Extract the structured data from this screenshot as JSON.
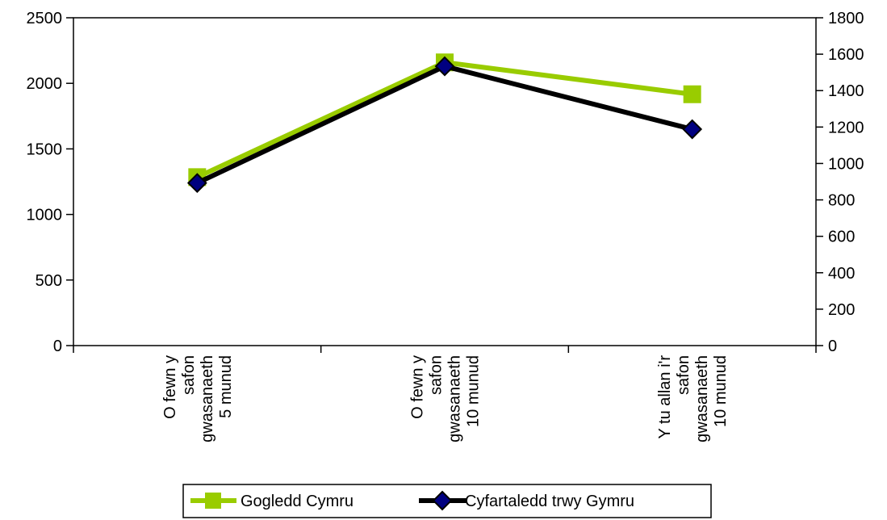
{
  "chart_data": {
    "type": "line",
    "title": "",
    "xlabel": "",
    "ylabel": "",
    "categories": [
      [
        "O fewn y",
        "safon",
        "gwasanaeth",
        "5 munud"
      ],
      [
        "O fewn y",
        "safon",
        "gwasanaeth",
        "10 munud"
      ],
      [
        "Y tu allan i'r",
        "safon",
        "gwasanaeth",
        "10 munud"
      ]
    ],
    "left_axis": {
      "ylim": [
        0,
        2500
      ],
      "ticks": [
        "0",
        "500",
        "1000",
        "1500",
        "2000",
        "2500"
      ]
    },
    "right_axis": {
      "ylim": [
        0,
        1800
      ],
      "ticks": [
        "0",
        "200",
        "400",
        "600",
        "800",
        "1000",
        "1200",
        "1400",
        "1600",
        "1800"
      ]
    },
    "series": [
      {
        "name": "Gogledd Cymru",
        "axis": "right",
        "values": [
          925,
          1555,
          1380
        ],
        "color": "#99cc00",
        "marker": "square"
      },
      {
        "name": "Cyfartaledd trwy Gymru",
        "axis": "left",
        "values": [
          1240,
          2130,
          1650
        ],
        "color": "#000000",
        "marker_fill": "#000080",
        "marker": "diamond"
      }
    ],
    "grid": false,
    "legend_position": "bottom"
  }
}
